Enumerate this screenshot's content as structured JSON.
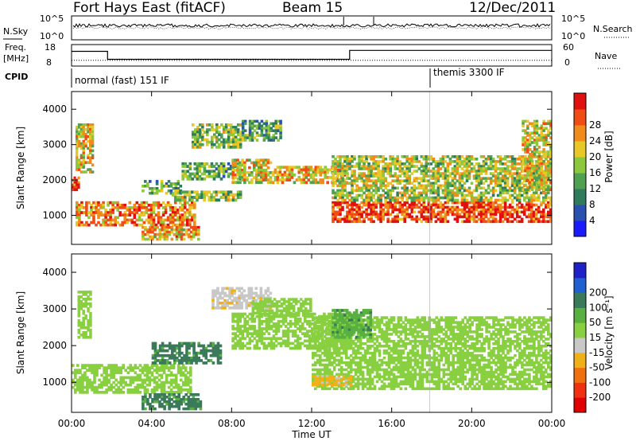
{
  "header": {
    "title": "Fort Hays East (fitACF)",
    "beam": "Beam 15",
    "date": "12/Dec/2011"
  },
  "summary": {
    "nsky_label": "N.Sky",
    "nsky_ticks": [
      "10^5",
      "10^0"
    ],
    "nsearch_label": "N.Search",
    "nsearch_ticks": [
      "10^5",
      "10^0"
    ],
    "freq_label": "Freq.",
    "freq_unit": "[MHz]",
    "freq_ticks": [
      "18",
      "8"
    ],
    "nave_label": "Nave",
    "nave_ticks": [
      "60",
      "0"
    ],
    "cpid_label": "CPID",
    "cpid_segments": [
      "normal (fast) 151 IF",
      "themis 3300 IF"
    ]
  },
  "panels": {
    "power": {
      "ylabel": "Slant Range [km]",
      "yticks": [
        "1000",
        "2000",
        "3000",
        "4000"
      ],
      "cbar_label": "Power [dB]",
      "cbar_ticks": [
        "4",
        "8",
        "12",
        "16",
        "20",
        "24",
        "28"
      ],
      "cbar_colors": [
        "#1a1aff",
        "#2a50b0",
        "#2f7c5c",
        "#4fa050",
        "#8cc83c",
        "#e8c828",
        "#f08c1c",
        "#f04c14",
        "#e01010"
      ]
    },
    "velocity": {
      "ylabel": "Slant Range [km]",
      "yticks": [
        "1000",
        "2000",
        "3000",
        "4000"
      ],
      "cbar_label": "Velocity [m s⁻¹]",
      "cbar_ticks": [
        "200",
        "100",
        "50",
        "15",
        "-15",
        "-50",
        "-100",
        "-200"
      ],
      "cbar_colors": [
        "#2020c8",
        "#2060d0",
        "#3a7a5a",
        "#58b040",
        "#88d040",
        "#c8c8c8",
        "#f0b018",
        "#f07010",
        "#f03010",
        "#e00000"
      ]
    }
  },
  "xaxis": {
    "label": "Time UT",
    "ticks": [
      "00:00",
      "04:00",
      "08:00",
      "12:00",
      "16:00",
      "20:00",
      "00:00"
    ]
  },
  "chart_data": {
    "type": "heatmap",
    "title": "Fort Hays East (fitACF)",
    "subtitle": "Beam 15",
    "date": "12/Dec/2011",
    "xlabel": "Time UT",
    "ylabel": "Slant Range [km]",
    "xlim_hours": [
      0,
      24
    ],
    "ylim_km": [
      180,
      4500
    ],
    "summary": {
      "frequency_mhz": [
        {
          "t": 0.0,
          "v": 15
        },
        {
          "t": 1.8,
          "v": 15
        },
        {
          "t": 1.8,
          "v": 11
        },
        {
          "t": 13.9,
          "v": 11
        },
        {
          "t": 13.9,
          "v": 15.5
        },
        {
          "t": 24.0,
          "v": 15.5
        }
      ],
      "nave": [
        {
          "t": 0.0,
          "v": 15
        },
        {
          "t": 24.0,
          "v": 15
        }
      ],
      "cpid": [
        {
          "start": 0.0,
          "end": 17.9,
          "label": "normal (fast) 151 IF"
        },
        {
          "start": 17.9,
          "end": 24.0,
          "label": "themis 3300 IF"
        }
      ]
    },
    "power": {
      "unit": "dB",
      "colorbar": [
        4,
        8,
        12,
        16,
        20,
        24,
        28
      ],
      "regions": [
        {
          "t": [
            0.0,
            0.4
          ],
          "r": [
            1700,
            2100
          ],
          "v": 26
        },
        {
          "t": [
            0.2,
            1.1
          ],
          "r": [
            2200,
            3600
          ],
          "v": 18
        },
        {
          "t": [
            0.2,
            6.2
          ],
          "r": [
            700,
            1400
          ],
          "v": 22
        },
        {
          "t": [
            3.5,
            6.4
          ],
          "r": [
            300,
            700
          ],
          "v": 20
        },
        {
          "t": [
            3.5,
            5.5
          ],
          "r": [
            1600,
            2000
          ],
          "v": 12
        },
        {
          "t": [
            5.0,
            8.5
          ],
          "r": [
            1400,
            1700
          ],
          "v": 14
        },
        {
          "t": [
            5.5,
            8.5
          ],
          "r": [
            2000,
            2500
          ],
          "v": 12
        },
        {
          "t": [
            6.0,
            8.5
          ],
          "r": [
            2900,
            3600
          ],
          "v": 14
        },
        {
          "t": [
            8.0,
            10.0
          ],
          "r": [
            1900,
            2600
          ],
          "v": 18
        },
        {
          "t": [
            8.5,
            10.5
          ],
          "r": [
            3100,
            3700
          ],
          "v": 12
        },
        {
          "t": [
            10.0,
            13.8
          ],
          "r": [
            1900,
            2400
          ],
          "v": 20
        },
        {
          "t": [
            13.0,
            24.0
          ],
          "r": [
            800,
            1400
          ],
          "v": 26
        },
        {
          "t": [
            13.0,
            24.0
          ],
          "r": [
            1400,
            2700
          ],
          "v": 16
        },
        {
          "t": [
            22.5,
            24.0
          ],
          "r": [
            1700,
            3700
          ],
          "v": 18
        }
      ]
    },
    "velocity": {
      "unit": "m s-1",
      "colorbar": [
        200,
        100,
        50,
        15,
        -15,
        -50,
        -100,
        -200
      ],
      "regions": [
        {
          "t": [
            0.0,
            6.0
          ],
          "r": [
            700,
            1500
          ],
          "v": 0
        },
        {
          "t": [
            0.3,
            1.0
          ],
          "r": [
            2200,
            3500
          ],
          "v": 0
        },
        {
          "t": [
            3.5,
            6.5
          ],
          "r": [
            250,
            700
          ],
          "v": 60
        },
        {
          "t": [
            4.0,
            7.5
          ],
          "r": [
            1500,
            2100
          ],
          "v": 60
        },
        {
          "t": [
            7.0,
            10.0
          ],
          "r": [
            3000,
            3600
          ],
          "v": -40
        },
        {
          "t": [
            8.0,
            14.0
          ],
          "r": [
            1900,
            2900
          ],
          "v": 0
        },
        {
          "t": [
            9.0,
            12.0
          ],
          "r": [
            2800,
            3300
          ],
          "v": 0
        },
        {
          "t": [
            12.0,
            24.0
          ],
          "r": [
            800,
            2800
          ],
          "v": 0
        },
        {
          "t": [
            13.0,
            15.0
          ],
          "r": [
            2200,
            3000
          ],
          "v": 40
        },
        {
          "t": [
            12.0,
            14.0
          ],
          "r": [
            900,
            1200
          ],
          "v": -60
        }
      ]
    }
  }
}
